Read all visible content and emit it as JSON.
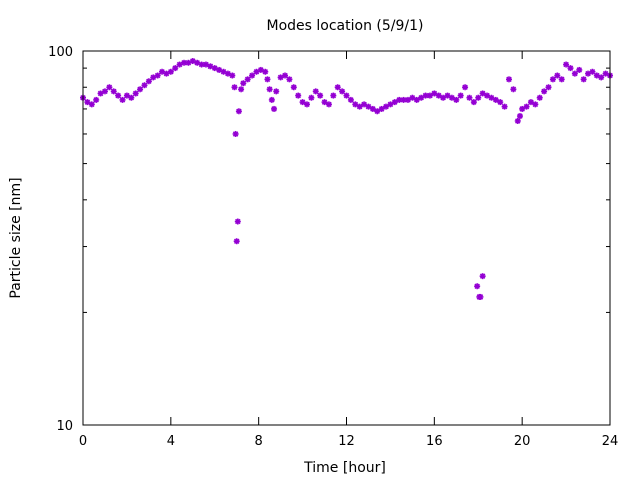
{
  "chart_data": {
    "type": "scatter",
    "title": "Modes location (5/9/1)",
    "xlabel": "Time [hour]",
    "ylabel": "Particle size [nm]",
    "xlim": [
      0,
      24
    ],
    "ylim": [
      10,
      100
    ],
    "y_scale": "log",
    "x_ticks": [
      "0",
      "4",
      "8",
      "12",
      "16",
      "20",
      "24"
    ],
    "y_ticks": [
      "10",
      "100"
    ],
    "grid": false,
    "color": "#9400d3",
    "marker": "asterisk",
    "points": [
      [
        0.0,
        75
      ],
      [
        0.2,
        73
      ],
      [
        0.4,
        72
      ],
      [
        0.6,
        74
      ],
      [
        0.8,
        77
      ],
      [
        1.0,
        78
      ],
      [
        1.2,
        80
      ],
      [
        1.4,
        78
      ],
      [
        1.6,
        76
      ],
      [
        1.8,
        74
      ],
      [
        2.0,
        76
      ],
      [
        2.2,
        75
      ],
      [
        2.4,
        77
      ],
      [
        2.6,
        79
      ],
      [
        2.8,
        81
      ],
      [
        3.0,
        83
      ],
      [
        3.2,
        85
      ],
      [
        3.4,
        86
      ],
      [
        3.6,
        88
      ],
      [
        3.8,
        87
      ],
      [
        4.0,
        88
      ],
      [
        4.2,
        90
      ],
      [
        4.4,
        92
      ],
      [
        4.6,
        93
      ],
      [
        4.8,
        93
      ],
      [
        5.0,
        94
      ],
      [
        5.2,
        93
      ],
      [
        5.4,
        92
      ],
      [
        5.6,
        92
      ],
      [
        5.8,
        91
      ],
      [
        6.0,
        90
      ],
      [
        6.2,
        89
      ],
      [
        6.4,
        88
      ],
      [
        6.6,
        87
      ],
      [
        6.8,
        86
      ],
      [
        6.9,
        80
      ],
      [
        6.95,
        60
      ],
      [
        7.0,
        31
      ],
      [
        7.05,
        35
      ],
      [
        7.1,
        69
      ],
      [
        7.2,
        79
      ],
      [
        7.3,
        82
      ],
      [
        7.5,
        84
      ],
      [
        7.7,
        86
      ],
      [
        7.9,
        88
      ],
      [
        8.1,
        89
      ],
      [
        8.3,
        88
      ],
      [
        8.4,
        84
      ],
      [
        8.5,
        79
      ],
      [
        8.6,
        74
      ],
      [
        8.7,
        70
      ],
      [
        8.8,
        78
      ],
      [
        9.0,
        85
      ],
      [
        9.2,
        86
      ],
      [
        9.4,
        84
      ],
      [
        9.6,
        80
      ],
      [
        9.8,
        76
      ],
      [
        10.0,
        73
      ],
      [
        10.2,
        72
      ],
      [
        10.4,
        75
      ],
      [
        10.6,
        78
      ],
      [
        10.8,
        76
      ],
      [
        11.0,
        73
      ],
      [
        11.2,
        72
      ],
      [
        11.4,
        76
      ],
      [
        11.6,
        80
      ],
      [
        11.8,
        78
      ],
      [
        12.0,
        76
      ],
      [
        12.2,
        74
      ],
      [
        12.4,
        72
      ],
      [
        12.6,
        71
      ],
      [
        12.8,
        72
      ],
      [
        13.0,
        71
      ],
      [
        13.2,
        70
      ],
      [
        13.4,
        69
      ],
      [
        13.6,
        70
      ],
      [
        13.8,
        71
      ],
      [
        14.0,
        72
      ],
      [
        14.2,
        73
      ],
      [
        14.4,
        74
      ],
      [
        14.6,
        74
      ],
      [
        14.8,
        74
      ],
      [
        15.0,
        75
      ],
      [
        15.2,
        74
      ],
      [
        15.4,
        75
      ],
      [
        15.6,
        76
      ],
      [
        15.8,
        76
      ],
      [
        16.0,
        77
      ],
      [
        16.2,
        76
      ],
      [
        16.4,
        75
      ],
      [
        16.6,
        76
      ],
      [
        16.8,
        75
      ],
      [
        17.0,
        74
      ],
      [
        17.2,
        76
      ],
      [
        17.4,
        80
      ],
      [
        17.6,
        75
      ],
      [
        17.8,
        73
      ],
      [
        17.95,
        23.5
      ],
      [
        18.05,
        22
      ],
      [
        18.1,
        22
      ],
      [
        18.2,
        25
      ],
      [
        18.0,
        75
      ],
      [
        18.2,
        77
      ],
      [
        18.4,
        76
      ],
      [
        18.6,
        75
      ],
      [
        18.8,
        74
      ],
      [
        19.0,
        73
      ],
      [
        19.2,
        71
      ],
      [
        19.4,
        84
      ],
      [
        19.6,
        79
      ],
      [
        19.8,
        65
      ],
      [
        19.9,
        67
      ],
      [
        20.0,
        70
      ],
      [
        20.2,
        71
      ],
      [
        20.4,
        73
      ],
      [
        20.6,
        72
      ],
      [
        20.8,
        75
      ],
      [
        21.0,
        78
      ],
      [
        21.2,
        80
      ],
      [
        21.4,
        84
      ],
      [
        21.6,
        86
      ],
      [
        21.8,
        84
      ],
      [
        22.0,
        92
      ],
      [
        22.2,
        90
      ],
      [
        22.4,
        87
      ],
      [
        22.6,
        89
      ],
      [
        22.8,
        84
      ],
      [
        23.0,
        87
      ],
      [
        23.2,
        88
      ],
      [
        23.4,
        86
      ],
      [
        23.6,
        85
      ],
      [
        23.8,
        87
      ],
      [
        24.0,
        86
      ]
    ]
  }
}
